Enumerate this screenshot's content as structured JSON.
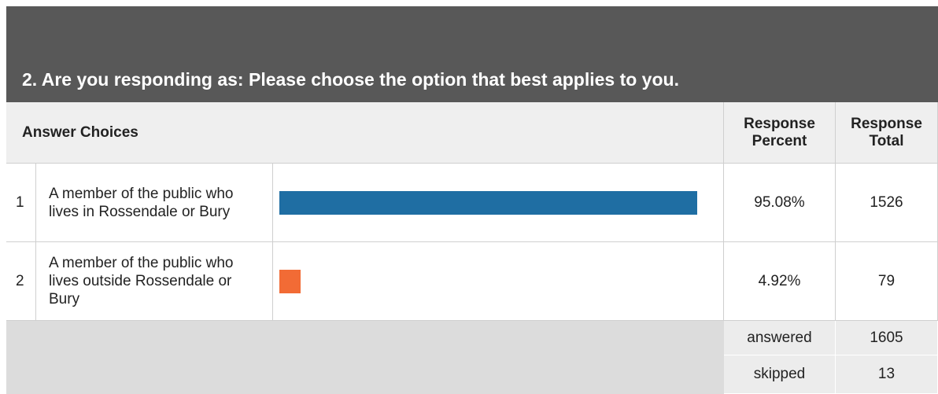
{
  "title": "2. Are you responding as: Please choose the option that best applies to you.",
  "table": {
    "headers": {
      "choices": "Answer Choices",
      "percent": "Response Percent",
      "total": "Response Total"
    },
    "xlim": [
      0,
      100
    ],
    "rows": [
      {
        "index": "1",
        "label": "A member of the public who lives in Rossendale or Bury",
        "percent": 95.08,
        "percent_label": "95.08%",
        "total": 1526,
        "color": "#1f6ea3"
      },
      {
        "index": "2",
        "label": "A member of the public who lives outside Rossendale or Bury",
        "percent": 4.92,
        "percent_label": "4.92%",
        "total": 79,
        "color": "#f26b35"
      }
    ],
    "summary": [
      {
        "label": "answered",
        "value": 1605
      },
      {
        "label": "skipped",
        "value": 13
      }
    ]
  }
}
